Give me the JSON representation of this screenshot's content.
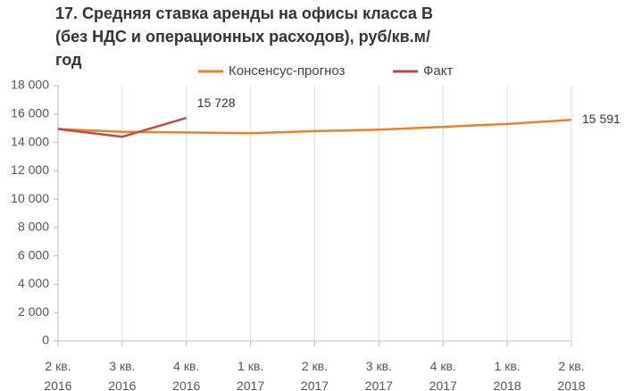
{
  "chart_data": {
    "type": "line",
    "title": "17. Средняя ставка аренды на офисы класса В (без НДС и операционных расходов), руб/кв.м/год",
    "categories": [
      "2 кв. 2016",
      "3 кв. 2016",
      "4 кв. 2016",
      "1 кв. 2017",
      "2 кв. 2017",
      "3 кв. 2017",
      "4 кв. 2017",
      "1 кв. 2018",
      "2 кв. 2018"
    ],
    "series": [
      {
        "name": "Консенсус-прогноз",
        "color": "#e8822a",
        "values": [
          14950,
          14750,
          14700,
          14650,
          14800,
          14900,
          15100,
          15300,
          15591
        ],
        "value_labels": [
          null,
          null,
          null,
          null,
          null,
          null,
          null,
          null,
          "15 591"
        ]
      },
      {
        "name": "Факт",
        "color": "#bf4b47",
        "values": [
          14950,
          14400,
          15728,
          null,
          null,
          null,
          null,
          null,
          null
        ],
        "value_labels": [
          null,
          null,
          "15 728",
          null,
          null,
          null,
          null,
          null,
          null
        ]
      }
    ],
    "ylim": [
      0,
      18000
    ],
    "yticks": [
      0,
      {
        "value": 2000,
        "label": "2 000"
      },
      {
        "value": 4000,
        "label": "4 000"
      },
      {
        "value": 6000,
        "label": "6 000"
      },
      {
        "value": 8000,
        "label": "8 000"
      },
      {
        "value": 10000,
        "label": "10 000"
      },
      {
        "value": 12000,
        "label": "12 000"
      },
      {
        "value": 14000,
        "label": "14 000"
      },
      {
        "value": 16000,
        "label": "16 000"
      },
      {
        "value": 18000,
        "label": "18 000"
      }
    ],
    "grid": "x",
    "legend": "top"
  }
}
